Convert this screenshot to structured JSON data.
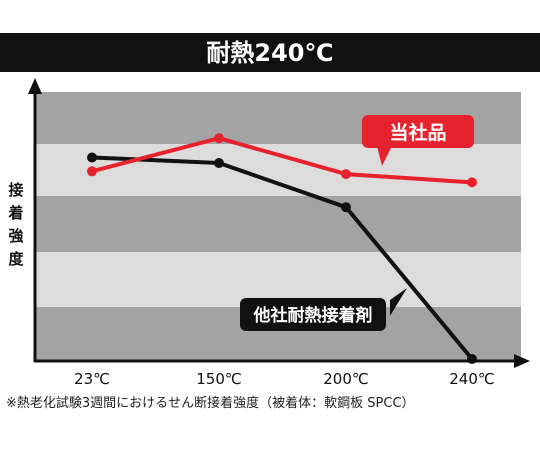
{
  "chart_data": {
    "type": "line",
    "title": "耐熱240℃",
    "ylabel": "接着強度",
    "categories": [
      "23℃",
      "150℃",
      "200℃",
      "240℃"
    ],
    "ylim": [
      0,
      100
    ],
    "grid": true,
    "series": [
      {
        "name": "当社品",
        "color": "#e8222d",
        "values": [
          68,
          80,
          67,
          64
        ]
      },
      {
        "name": "他社耐熱接着剤",
        "color": "#111111",
        "values": [
          73,
          71,
          55,
          0
        ]
      }
    ]
  },
  "footnote": "※熱老化試験3週間におけるせん断接着強度（被着体：軟鋼板 SPCC）"
}
